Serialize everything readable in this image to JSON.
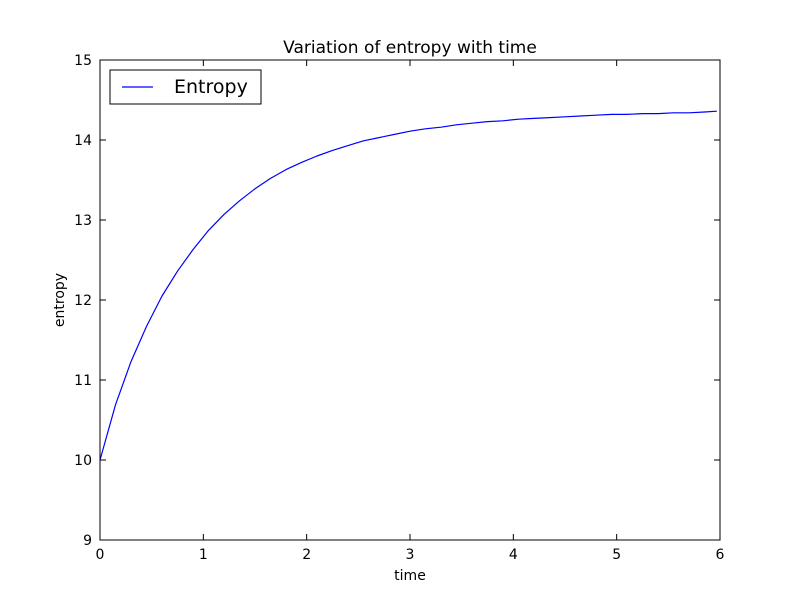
{
  "chart_data": {
    "type": "line",
    "title": "Variation of entropy with time",
    "xlabel": "time",
    "ylabel": "entropy",
    "xlim": [
      0,
      6
    ],
    "ylim": [
      9,
      15
    ],
    "xticks": [
      0,
      1,
      2,
      3,
      4,
      5,
      6
    ],
    "yticks": [
      9,
      10,
      11,
      12,
      13,
      14,
      15
    ],
    "grid": false,
    "legend": {
      "placement": "top-left",
      "entries": [
        "Entropy"
      ]
    },
    "colors": {
      "line": "#0000ff",
      "axes": "#000000",
      "background": "#ffffff"
    },
    "series": [
      {
        "name": "Entropy",
        "x": [
          0,
          0.15,
          0.3,
          0.45,
          0.6,
          0.75,
          0.9,
          1.05,
          1.2,
          1.35,
          1.5,
          1.65,
          1.8,
          1.95,
          2.1,
          2.25,
          2.4,
          2.55,
          2.7,
          2.85,
          3.0,
          3.15,
          3.3,
          3.45,
          3.6,
          3.75,
          3.9,
          4.05,
          4.2,
          4.35,
          4.5,
          4.65,
          4.8,
          4.95,
          5.1,
          5.25,
          5.4,
          5.55,
          5.7,
          5.85,
          5.97
        ],
        "y": [
          10.0,
          10.69,
          11.23,
          11.67,
          12.05,
          12.36,
          12.63,
          12.87,
          13.07,
          13.24,
          13.39,
          13.52,
          13.63,
          13.72,
          13.8,
          13.87,
          13.93,
          13.99,
          14.03,
          14.07,
          14.11,
          14.14,
          14.16,
          14.19,
          14.21,
          14.23,
          14.24,
          14.26,
          14.27,
          14.28,
          14.29,
          14.3,
          14.31,
          14.32,
          14.32,
          14.33,
          14.33,
          14.34,
          14.34,
          14.35,
          14.36
        ]
      }
    ]
  }
}
